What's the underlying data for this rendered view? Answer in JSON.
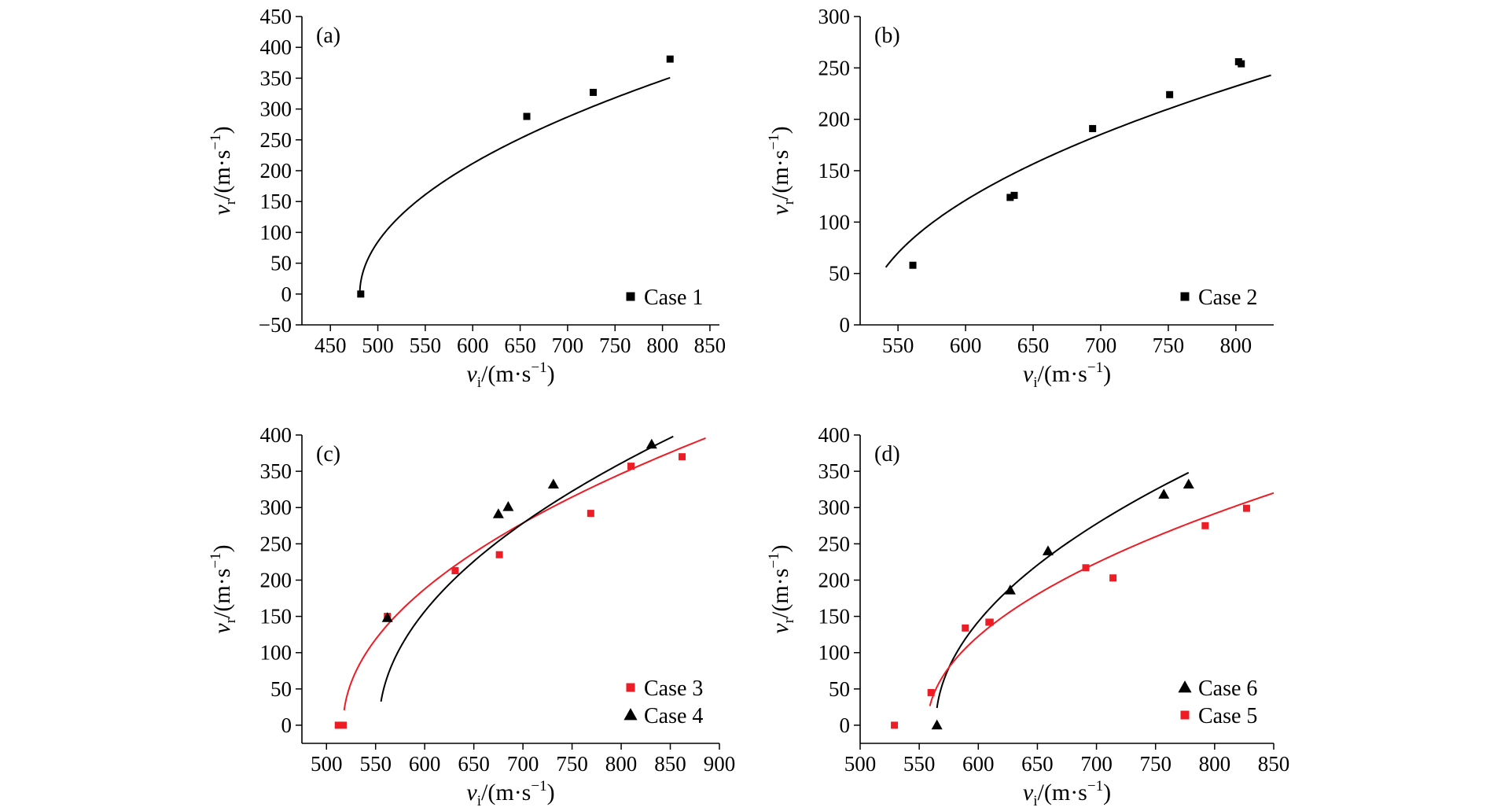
{
  "chart_data": [
    {
      "type": "scatter",
      "panel_label": "(a)",
      "xlabel": {
        "var": "v",
        "sub": "i",
        "unit_main": "/(m·s",
        "unit_sup": "−1",
        "unit_end": ")"
      },
      "ylabel": {
        "var": "v",
        "sub": "r",
        "unit_main": "/(m·s",
        "unit_sup": "−1",
        "unit_end": ")"
      },
      "xlim": [
        420,
        860
      ],
      "ylim": [
        -50,
        450
      ],
      "xticks": [
        450,
        500,
        550,
        600,
        650,
        700,
        750,
        800,
        850
      ],
      "yticks": [
        -50,
        0,
        50,
        100,
        150,
        200,
        250,
        300,
        350,
        400,
        450
      ],
      "xtick_labels": [
        "450",
        "500",
        "550",
        "600",
        "650",
        "700",
        "750",
        "800",
        "850"
      ],
      "ytick_labels": [
        "−50",
        "0",
        "50",
        "100",
        "150",
        "200",
        "250",
        "300",
        "350",
        "400",
        "450"
      ],
      "legend_position": "bottom-right",
      "series": [
        {
          "name": "Case 1",
          "marker": "square",
          "color": "#000000",
          "points": [
            [
              482,
              0
            ],
            [
              657,
              288
            ],
            [
              727,
              327
            ],
            [
              808,
              381
            ]
          ],
          "fit": {
            "v_bl": 481,
            "a": 19.4,
            "x_end": 808
          }
        }
      ]
    },
    {
      "type": "scatter",
      "panel_label": "(b)",
      "xlabel": {
        "var": "v",
        "sub": "i",
        "unit_main": "/(m·s",
        "unit_sup": "−1",
        "unit_end": ")"
      },
      "ylabel": {
        "var": "v",
        "sub": "r",
        "unit_main": "/(m·s",
        "unit_sup": "−1",
        "unit_end": ")"
      },
      "xlim": [
        522,
        828
      ],
      "ylim": [
        0,
        300
      ],
      "xticks": [
        550,
        600,
        650,
        700,
        750,
        800
      ],
      "yticks": [
        0,
        50,
        100,
        150,
        200,
        250,
        300
      ],
      "xtick_labels": [
        "550",
        "600",
        "650",
        "700",
        "750",
        "800"
      ],
      "ytick_labels": [
        "0",
        "50",
        "100",
        "150",
        "200",
        "250",
        "300"
      ],
      "legend_position": "bottom-right",
      "series": [
        {
          "name": "Case 2",
          "marker": "square",
          "color": "#000000",
          "points": [
            [
              561,
              58
            ],
            [
              633,
              124
            ],
            [
              636,
              126
            ],
            [
              694,
              191
            ],
            [
              751,
              224
            ],
            [
              802,
              256
            ],
            [
              804,
              254
            ]
          ],
          "fit": {
            "v_bl": 525,
            "a": 14.0,
            "x_start": 541,
            "x_end": 826
          }
        }
      ]
    },
    {
      "type": "scatter",
      "panel_label": "(c)",
      "xlabel": {
        "var": "v",
        "sub": "i",
        "unit_main": "/(m·s",
        "unit_sup": "−1",
        "unit_end": ")"
      },
      "ylabel": {
        "var": "v",
        "sub": "r",
        "unit_main": "/(m·s",
        "unit_sup": "−1",
        "unit_end": ")"
      },
      "xlim": [
        475,
        900
      ],
      "ylim": [
        -25,
        400
      ],
      "xticks": [
        500,
        550,
        600,
        650,
        700,
        750,
        800,
        850,
        900
      ],
      "yticks": [
        0,
        50,
        100,
        150,
        200,
        250,
        300,
        350,
        400
      ],
      "xtick_labels": [
        "500",
        "550",
        "600",
        "650",
        "700",
        "750",
        "800",
        "850",
        "900"
      ],
      "ytick_labels": [
        "0",
        "50",
        "100",
        "150",
        "200",
        "250",
        "300",
        "350",
        "400"
      ],
      "legend_position": "bottom-right",
      "series": [
        {
          "name": "Case 3",
          "marker": "square",
          "color": "#ee1c24",
          "points": [
            [
              512,
              0
            ],
            [
              517,
              0
            ],
            [
              562,
              150
            ],
            [
              631,
              213
            ],
            [
              676,
              235
            ],
            [
              769,
              292
            ],
            [
              810,
              357
            ],
            [
              862,
              370
            ]
          ],
          "fit": {
            "v_bl": 517,
            "a": 20.6,
            "x_start": 518,
            "x_end": 886
          }
        },
        {
          "name": "Case 4",
          "marker": "triangle",
          "color": "#000000",
          "points": [
            [
              562,
              148
            ],
            [
              675,
              291
            ],
            [
              685,
              301
            ],
            [
              731,
              332
            ],
            [
              831,
              387
            ]
          ],
          "fit": {
            "v_bl": 553.5,
            "a": 23.0,
            "x_start": 555.5,
            "x_end": 853
          }
        }
      ]
    },
    {
      "type": "scatter",
      "panel_label": "(d)",
      "xlabel": {
        "var": "v",
        "sub": "i",
        "unit_main": "/(m·s",
        "unit_sup": "−1",
        "unit_end": ")"
      },
      "ylabel": {
        "var": "v",
        "sub": "r",
        "unit_main": "/(m·s",
        "unit_sup": "−1",
        "unit_end": ")"
      },
      "xlim": [
        500,
        850
      ],
      "ylim": [
        -25,
        400
      ],
      "xticks": [
        500,
        550,
        600,
        650,
        700,
        750,
        800,
        850
      ],
      "yticks": [
        0,
        50,
        100,
        150,
        200,
        250,
        300,
        350,
        400
      ],
      "xtick_labels": [
        "500",
        "550",
        "600",
        "650",
        "700",
        "750",
        "800",
        "850"
      ],
      "ytick_labels": [
        "0",
        "50",
        "100",
        "150",
        "200",
        "250",
        "300",
        "350",
        "400"
      ],
      "legend_position": "bottom-right",
      "series": [
        {
          "name": "Case 6",
          "marker": "triangle",
          "color": "#000000",
          "points": [
            [
              565,
              0
            ],
            [
              627,
              186
            ],
            [
              659,
              240
            ],
            [
              757,
              318
            ],
            [
              778,
              332
            ]
          ],
          "fit": {
            "v_bl": 564,
            "a": 23.8,
            "x_start": 565,
            "x_end": 778
          }
        },
        {
          "name": "Case 5",
          "marker": "square",
          "color": "#ee1c24",
          "points": [
            [
              529,
              0
            ],
            [
              560,
              45
            ],
            [
              589,
              134
            ],
            [
              609,
              142
            ],
            [
              610,
              142
            ],
            [
              691,
              217
            ],
            [
              714,
              203
            ],
            [
              792,
              275
            ],
            [
              827,
              299
            ]
          ],
          "fit": {
            "v_bl": 557,
            "a": 18.7,
            "x_start": 559,
            "x_end": 850
          }
        }
      ]
    }
  ]
}
